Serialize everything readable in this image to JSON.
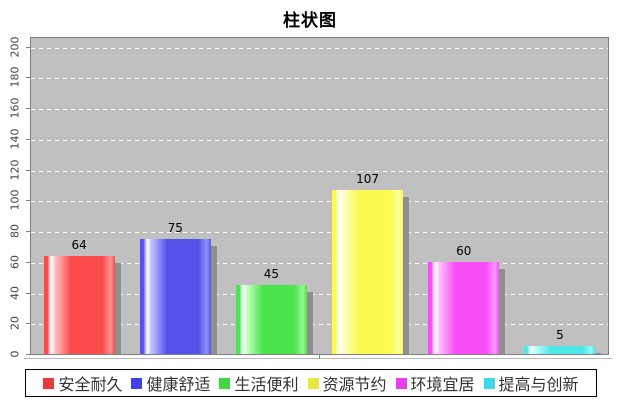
{
  "chart": {
    "title": "柱状图",
    "plot_background": "#c0c0c0",
    "grid_color": "#ffffff",
    "axis_color": "#7f7f7f",
    "tick_label_color": "#444444",
    "value_label_color": "#000000",
    "shadow_color": "#8f8f8f"
  },
  "chart_data": {
    "type": "bar",
    "title": "柱状图",
    "categories": [
      "安全耐久",
      "健康舒适",
      "生活便利",
      "资源节约",
      "环境宜居",
      "提高与创新"
    ],
    "values": [
      64,
      75,
      45,
      107,
      60,
      5
    ],
    "series": [
      {
        "name": "安全耐久",
        "value": 64,
        "bar_color": "#FA4A4A",
        "bar_light": "#FFC8C8",
        "bar_sheen": "#FF9090",
        "legend_color": "#E83838"
      },
      {
        "name": "健康舒适",
        "value": 75,
        "bar_color": "#5353EC",
        "bar_light": "#C8C8FF",
        "bar_sheen": "#9090F8",
        "legend_color": "#4040E8"
      },
      {
        "name": "生活便利",
        "value": 45,
        "bar_color": "#4CE44C",
        "bar_light": "#C8FFC8",
        "bar_sheen": "#90F890",
        "legend_color": "#40D840"
      },
      {
        "name": "资源节约",
        "value": 107,
        "bar_color": "#FAFA50",
        "bar_light": "#FFFFD0",
        "bar_sheen": "#FFFF9E",
        "legend_color": "#E8E840"
      },
      {
        "name": "环境宜居",
        "value": 60,
        "bar_color": "#F84EF8",
        "bar_light": "#FFC8FF",
        "bar_sheen": "#FF94FF",
        "legend_color": "#E840E8"
      },
      {
        "name": "提高与创新",
        "value": 5,
        "bar_color": "#4EE8E8",
        "bar_light": "#C8FFFF",
        "bar_sheen": "#94F8F8",
        "legend_color": "#40D8E8"
      }
    ],
    "xlabel": "",
    "ylabel": "",
    "ylim": [
      0,
      207
    ],
    "y_ticks": [
      0,
      20,
      40,
      60,
      80,
      100,
      120,
      140,
      160,
      180,
      200
    ],
    "grid": "horizontal-dashed-white",
    "legend_position": "bottom"
  }
}
